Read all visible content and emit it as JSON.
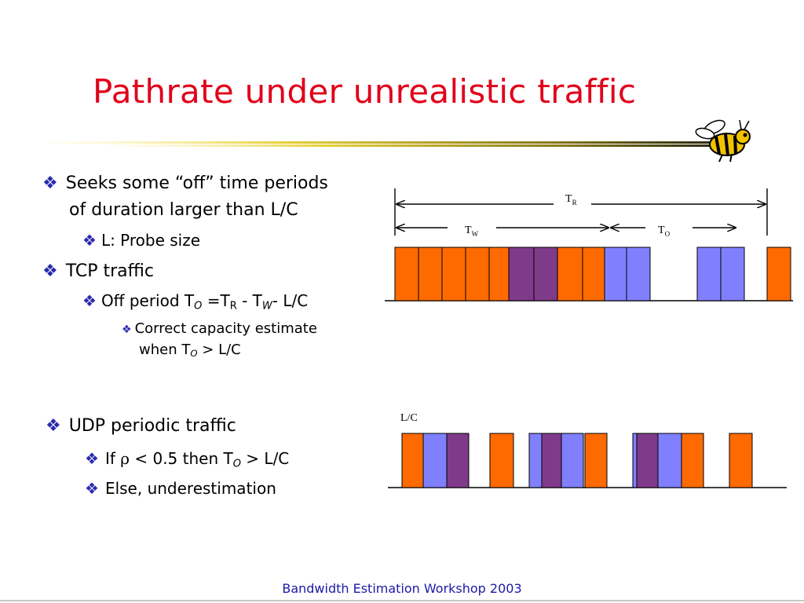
{
  "slide": {
    "title": "Pathrate under unrealistic traffic",
    "footer": "Bandwidth Estimation Workshop 2003",
    "bullet_glyph": "❖"
  },
  "bullets": {
    "b1_line1": "Seeks some “off” time periods",
    "b1_line2": "of duration larger than L/C",
    "b1_sub": "L: Probe size",
    "b2": "TCP traffic",
    "b2_sub_prefix": "Off period T",
    "b2_sub_o": "O",
    "b2_sub_eq": " =T",
    "b2_sub_r": "R",
    "b2_sub_minus": " - T",
    "b2_sub_w": "W",
    "b2_sub_tail": "- L/C",
    "b2_subsub_line1": "Correct capacity estimate",
    "b2_subsub_line2_prefix": "when T",
    "b2_subsub_line2_o": "O",
    "b2_subsub_line2_tail": " > L/C",
    "b3": "UDP periodic traffic",
    "b3_sub1_prefix": "If ",
    "b3_sub1_rho": "ρ",
    "b3_sub1_mid": " < 0.5 then T",
    "b3_sub1_o": "O",
    "b3_sub1_tail": " > L/C",
    "b3_sub2": "Else, underestimation"
  },
  "diagram_top": {
    "label_TR": "T",
    "label_TR_sub": "R",
    "label_TW": "T",
    "label_TW_sub": "W",
    "label_TO": "T",
    "label_TO_sub": "O"
  },
  "diagram_bottom": {
    "label_LC": "L/C"
  },
  "colors": {
    "title": "#e0001b",
    "bullet": "#2a2ab0",
    "footer": "#1a1aa6",
    "tcp_packet": "#ff6a00",
    "probe_packet": "#8080ff",
    "overlap_packet": "#7f3a8a"
  },
  "icons": {
    "bee": "bee-mascot-icon",
    "bullet": "diamond-bullet-icon"
  }
}
